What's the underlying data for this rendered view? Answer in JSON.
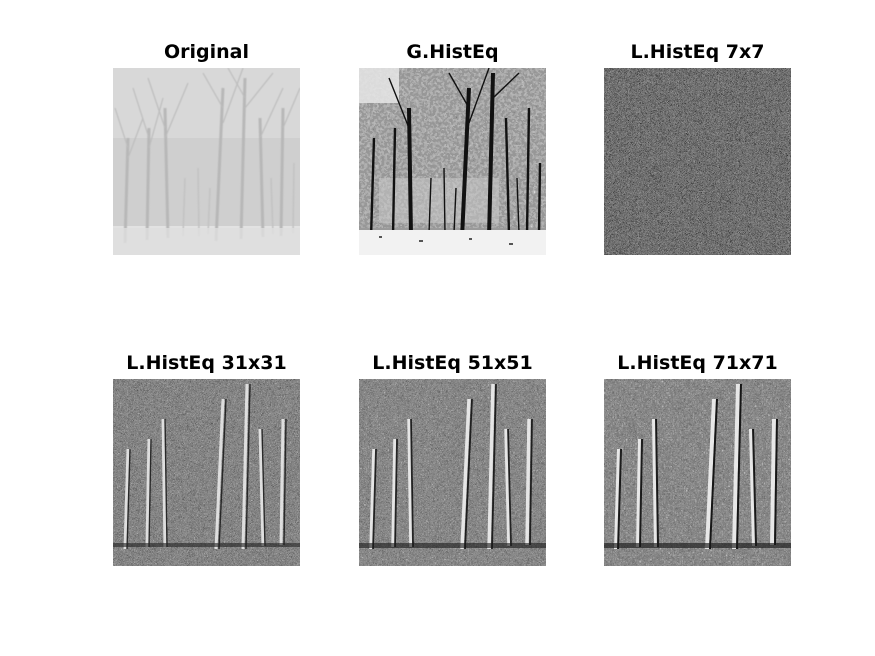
{
  "figure": {
    "panels": [
      {
        "title": "Original",
        "style": "original"
      },
      {
        "title": "G.HistEq",
        "style": "global"
      },
      {
        "title": "L.HistEq 7x7",
        "style": "local7"
      },
      {
        "title": "L.HistEq 31x31",
        "style": "local31"
      },
      {
        "title": "L.HistEq 51x51",
        "style": "local51"
      },
      {
        "title": "L.HistEq 71x71",
        "style": "local71"
      }
    ]
  },
  "colors": {
    "background": "#ffffff",
    "text": "#000000"
  }
}
